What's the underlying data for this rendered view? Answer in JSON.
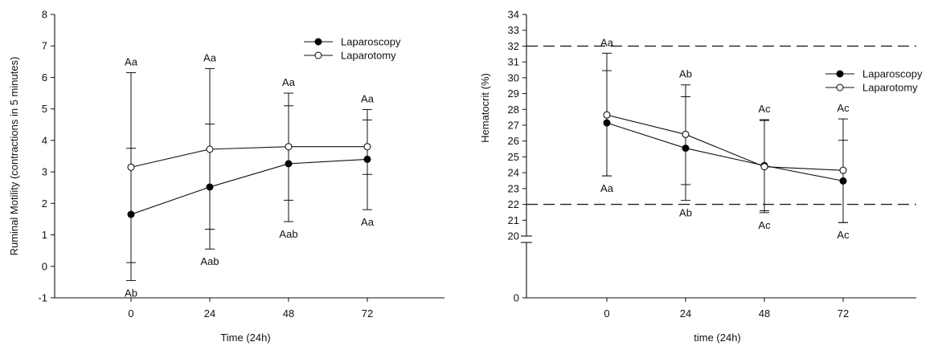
{
  "chart_data": [
    {
      "type": "line",
      "x": [
        0,
        24,
        48,
        72
      ],
      "xticklabels": [
        "0",
        "24",
        "48",
        "72"
      ],
      "xlabel": "Time (24h)",
      "ylabel": "Ruminal Motility (contractions in 5 minutes)",
      "ylim": [
        -1,
        8
      ],
      "yticks": [
        "-1",
        "0",
        "1",
        "2",
        "3",
        "4",
        "5",
        "6",
        "7",
        "8"
      ],
      "legend_position": "top-right",
      "series": [
        {
          "name": "Laparoscopy",
          "marker": "filled-circle",
          "values": [
            1.65,
            2.52,
            3.26,
            3.4
          ],
          "err_low": [
            -0.45,
            0.55,
            2.1,
            2.92
          ],
          "err_high": [
            3.75,
            4.52,
            5.1,
            4.65
          ],
          "annotations": [
            "Ab",
            "Aab",
            "Aab",
            "Aa"
          ]
        },
        {
          "name": "Laparotomy",
          "marker": "open-circle",
          "values": [
            3.15,
            3.72,
            3.8,
            3.8
          ],
          "err_low": [
            0.12,
            1.18,
            1.42,
            1.8
          ],
          "err_high": [
            6.15,
            6.28,
            5.5,
            4.98
          ],
          "annotations": [
            "Aa",
            "Aa",
            "Aa",
            "Aa"
          ]
        }
      ]
    },
    {
      "type": "line",
      "x": [
        0,
        24,
        48,
        72
      ],
      "xticklabels": [
        "0",
        "24",
        "48",
        "72"
      ],
      "xlabel": "time (24h)",
      "ylabel": "Hematocrit (%)",
      "ylim": [
        0,
        34
      ],
      "broken_axis": [
        0,
        20
      ],
      "yticks": [
        "0",
        "20",
        "21",
        "22",
        "23",
        "24",
        "25",
        "26",
        "27",
        "28",
        "29",
        "30",
        "31",
        "32",
        "33",
        "34"
      ],
      "reference_lines": [
        32,
        22
      ],
      "legend_position": "top-right",
      "series": [
        {
          "name": "Laparoscopy",
          "marker": "filled-circle",
          "values": [
            27.15,
            25.55,
            24.45,
            23.48
          ],
          "err_low": [
            23.8,
            22.25,
            21.6,
            20.85
          ],
          "err_high": [
            30.45,
            28.8,
            27.3,
            26.05
          ],
          "annotations": [
            "Aa",
            "Ab",
            "Ac",
            "Ac"
          ]
        },
        {
          "name": "Laparotomy",
          "marker": "open-circle",
          "values": [
            27.65,
            26.42,
            24.38,
            24.15
          ],
          "err_low": [
            23.8,
            23.25,
            21.48,
            20.85
          ],
          "err_high": [
            31.55,
            29.55,
            27.35,
            27.4
          ],
          "annotations": [
            "Aa",
            "Ab",
            "Ac",
            "Ac"
          ]
        }
      ]
    }
  ]
}
